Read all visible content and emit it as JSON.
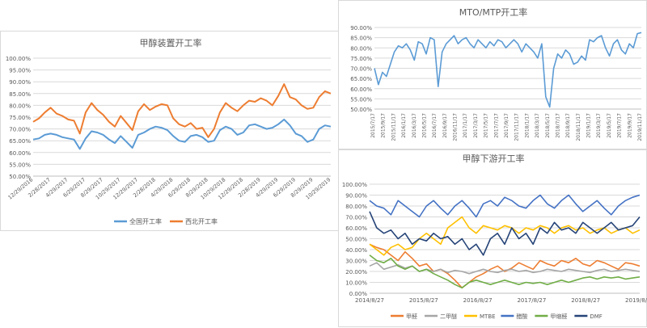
{
  "chart_data": [
    {
      "type": "line",
      "title": "甲醇装置开工率",
      "ylim": [
        0.5,
        1.0
      ],
      "yticks": [
        "100.00%",
        "95.00%",
        "90.00%",
        "85.00%",
        "80.00%",
        "75.00%",
        "70.00%",
        "65.00%",
        "60.00%",
        "55.00%",
        "50.00%"
      ],
      "xticks": [
        "12/29/2016",
        "2/28/2017",
        "4/29/2017",
        "6/29/2017",
        "8/29/2017",
        "10/29/2017",
        "12/29/2017",
        "2/28/2018",
        "4/29/2018",
        "6/29/2018",
        "8/29/2018",
        "10/29/2018",
        "12/29/2018",
        "2/28/2019",
        "4/29/2019",
        "6/29/2019",
        "8/29/2019",
        "10/29/2019"
      ],
      "series": [
        {
          "name": "全国开工率",
          "color": "#5b9bd5",
          "values": [
            0.655,
            0.66,
            0.675,
            0.68,
            0.675,
            0.665,
            0.66,
            0.655,
            0.615,
            0.66,
            0.69,
            0.685,
            0.675,
            0.655,
            0.64,
            0.67,
            0.645,
            0.62,
            0.675,
            0.685,
            0.7,
            0.71,
            0.705,
            0.695,
            0.67,
            0.65,
            0.645,
            0.67,
            0.675,
            0.665,
            0.645,
            0.65,
            0.695,
            0.71,
            0.7,
            0.675,
            0.685,
            0.715,
            0.72,
            0.71,
            0.7,
            0.705,
            0.72,
            0.74,
            0.715,
            0.68,
            0.67,
            0.645,
            0.655,
            0.7,
            0.715,
            0.71
          ]
        },
        {
          "name": "西北开工率",
          "color": "#ed7d31",
          "values": [
            0.73,
            0.745,
            0.77,
            0.79,
            0.765,
            0.755,
            0.74,
            0.735,
            0.68,
            0.77,
            0.81,
            0.78,
            0.76,
            0.73,
            0.71,
            0.755,
            0.725,
            0.695,
            0.775,
            0.805,
            0.78,
            0.795,
            0.805,
            0.8,
            0.745,
            0.72,
            0.71,
            0.725,
            0.7,
            0.705,
            0.665,
            0.7,
            0.77,
            0.81,
            0.79,
            0.775,
            0.8,
            0.82,
            0.815,
            0.83,
            0.82,
            0.8,
            0.84,
            0.89,
            0.835,
            0.825,
            0.8,
            0.785,
            0.79,
            0.835,
            0.86,
            0.85
          ]
        }
      ]
    },
    {
      "type": "line",
      "title": "MTO/MTP开工率",
      "ylim": [
        0.5,
        0.9
      ],
      "yticks": [
        "90.00%",
        "85.00%",
        "80.00%",
        "75.00%",
        "70.00%",
        "65.00%",
        "60.00%",
        "55.00%",
        "50.00%"
      ],
      "xticks": [
        "2015/7/17",
        "2015/9/17",
        "2015/11/17",
        "2016/1/17",
        "2016/3/17",
        "2016/5/17",
        "2016/7/17",
        "2016/9/17",
        "2016/11/17",
        "2017/1/17",
        "2017/3/17",
        "2017/5/17",
        "2017/7/17",
        "2017/9/17",
        "2017/11/17",
        "2018/1/17",
        "2018/3/17",
        "2018/5/17",
        "2018/7/17",
        "2018/9/17",
        "2018/11/17",
        "2019/1/17",
        "2019/3/17",
        "2019/5/17",
        "2019/7/17",
        "2019/9/17",
        "2019/11/17"
      ],
      "series": [
        {
          "name": "MTO/MTP开工率",
          "color": "#5b9bd5",
          "values": [
            0.7,
            0.62,
            0.68,
            0.66,
            0.72,
            0.78,
            0.81,
            0.8,
            0.82,
            0.79,
            0.74,
            0.83,
            0.82,
            0.77,
            0.85,
            0.84,
            0.61,
            0.78,
            0.82,
            0.84,
            0.86,
            0.82,
            0.84,
            0.85,
            0.82,
            0.8,
            0.84,
            0.82,
            0.8,
            0.83,
            0.81,
            0.84,
            0.83,
            0.8,
            0.82,
            0.84,
            0.82,
            0.78,
            0.82,
            0.8,
            0.78,
            0.75,
            0.82,
            0.56,
            0.51,
            0.7,
            0.77,
            0.75,
            0.79,
            0.77,
            0.72,
            0.73,
            0.76,
            0.74,
            0.84,
            0.83,
            0.85,
            0.86,
            0.8,
            0.76,
            0.82,
            0.84,
            0.79,
            0.77,
            0.82,
            0.8,
            0.87,
            0.875
          ]
        }
      ]
    },
    {
      "type": "line",
      "title": "甲醇下游开工率",
      "ylim": [
        0.0,
        1.0
      ],
      "yticks": [
        "100.00%",
        "90.00%",
        "80.00%",
        "70.00%",
        "60.00%",
        "50.00%",
        "40.00%",
        "30.00%",
        "20.00%",
        "10.00%",
        "0.00%"
      ],
      "xticks": [
        "2014/8/27",
        "2015/8/27",
        "2016/8/27",
        "2017/8/27",
        "2018/8/27",
        "2019/8/27"
      ],
      "series": [
        {
          "name": "甲醛",
          "color": "#ed7d31",
          "values": [
            0.45,
            0.42,
            0.4,
            0.35,
            0.3,
            0.38,
            0.32,
            0.25,
            0.27,
            0.2,
            0.22,
            0.18,
            0.12,
            0.05,
            0.1,
            0.15,
            0.18,
            0.22,
            0.25,
            0.2,
            0.23,
            0.28,
            0.25,
            0.22,
            0.3,
            0.27,
            0.25,
            0.3,
            0.28,
            0.32,
            0.27,
            0.25,
            0.3,
            0.28,
            0.25,
            0.22,
            0.28,
            0.27,
            0.25
          ]
        },
        {
          "name": "二甲醚",
          "color": "#a5a5a5",
          "values": [
            0.25,
            0.28,
            0.22,
            0.24,
            0.26,
            0.23,
            0.25,
            0.2,
            0.22,
            0.2,
            0.22,
            0.19,
            0.21,
            0.2,
            0.18,
            0.2,
            0.22,
            0.2,
            0.19,
            0.21,
            0.22,
            0.2,
            0.21,
            0.19,
            0.2,
            0.22,
            0.21,
            0.2,
            0.22,
            0.21,
            0.2,
            0.19,
            0.21,
            0.22,
            0.2,
            0.21,
            0.22,
            0.21,
            0.2
          ]
        },
        {
          "name": "MTBE",
          "color": "#ffc000",
          "values": [
            0.45,
            0.4,
            0.35,
            0.42,
            0.45,
            0.4,
            0.42,
            0.5,
            0.55,
            0.5,
            0.45,
            0.6,
            0.65,
            0.7,
            0.6,
            0.55,
            0.62,
            0.6,
            0.58,
            0.62,
            0.6,
            0.55,
            0.6,
            0.58,
            0.62,
            0.6,
            0.55,
            0.6,
            0.62,
            0.58,
            0.6,
            0.55,
            0.58,
            0.6,
            0.55,
            0.58,
            0.6,
            0.55,
            0.58
          ]
        },
        {
          "name": "醋酸",
          "color": "#4472c4",
          "values": [
            0.85,
            0.8,
            0.78,
            0.72,
            0.85,
            0.8,
            0.75,
            0.7,
            0.8,
            0.85,
            0.78,
            0.72,
            0.8,
            0.85,
            0.78,
            0.7,
            0.82,
            0.85,
            0.8,
            0.88,
            0.85,
            0.8,
            0.78,
            0.85,
            0.9,
            0.82,
            0.78,
            0.85,
            0.9,
            0.82,
            0.75,
            0.8,
            0.85,
            0.78,
            0.72,
            0.8,
            0.85,
            0.88,
            0.9
          ]
        },
        {
          "name": "甲缩醛",
          "color": "#70ad47",
          "values": [
            0.35,
            0.3,
            0.28,
            0.32,
            0.25,
            0.22,
            0.25,
            0.2,
            0.22,
            0.18,
            0.15,
            0.12,
            0.08,
            0.05,
            0.1,
            0.12,
            0.1,
            0.08,
            0.1,
            0.12,
            0.1,
            0.08,
            0.1,
            0.09,
            0.1,
            0.08,
            0.1,
            0.12,
            0.1,
            0.12,
            0.14,
            0.15,
            0.13,
            0.15,
            0.14,
            0.15,
            0.13,
            0.14,
            0.15
          ]
        },
        {
          "name": "DMF",
          "color": "#264478",
          "values": [
            0.75,
            0.6,
            0.55,
            0.58,
            0.5,
            0.55,
            0.45,
            0.5,
            0.48,
            0.55,
            0.5,
            0.52,
            0.45,
            0.5,
            0.4,
            0.45,
            0.35,
            0.5,
            0.55,
            0.45,
            0.6,
            0.5,
            0.55,
            0.45,
            0.6,
            0.55,
            0.65,
            0.58,
            0.6,
            0.55,
            0.65,
            0.6,
            0.55,
            0.6,
            0.65,
            0.58,
            0.6,
            0.62,
            0.7
          ]
        }
      ]
    }
  ]
}
